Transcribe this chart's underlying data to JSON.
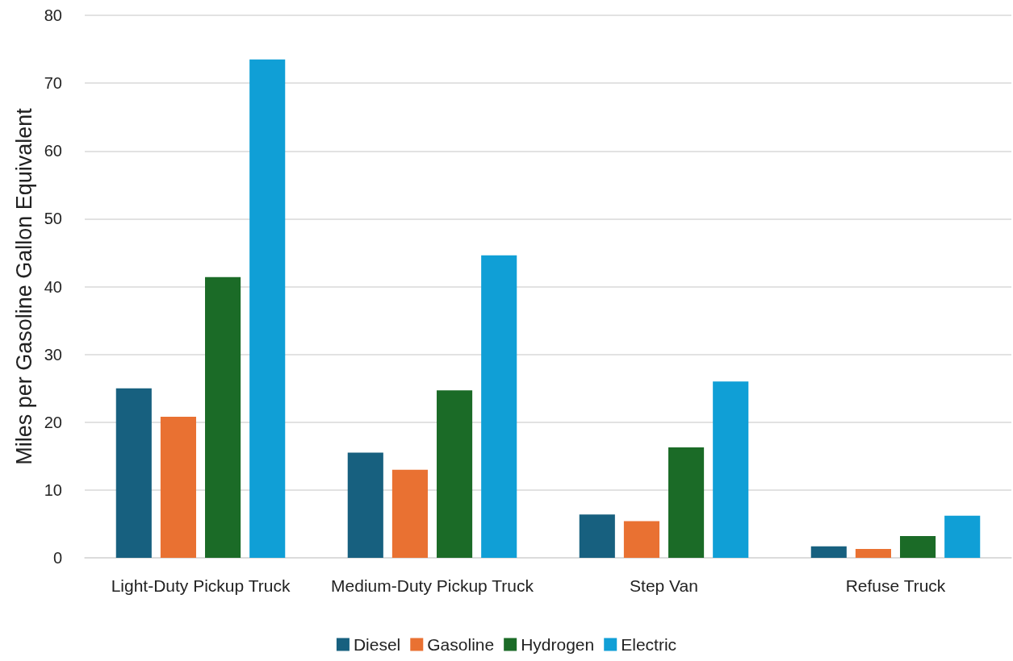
{
  "chart_data": {
    "type": "bar",
    "ylabel": "Miles per Gasoline Gallon Equivalent",
    "categories": [
      "Light-Duty Pickup Truck",
      "Medium-Duty Pickup Truck",
      "Step Van",
      "Refuse Truck"
    ],
    "series": [
      {
        "name": "Diesel",
        "color": "#17607f",
        "values": [
          25.0,
          15.5,
          6.4,
          1.7
        ]
      },
      {
        "name": "Gasoline",
        "color": "#e97132",
        "values": [
          20.8,
          13.0,
          5.4,
          1.3
        ]
      },
      {
        "name": "Hydrogen",
        "color": "#1b6b27",
        "values": [
          41.4,
          24.7,
          16.3,
          3.2
        ]
      },
      {
        "name": "Electric",
        "color": "#109fd6",
        "values": [
          73.5,
          44.6,
          26.0,
          6.2
        ]
      }
    ],
    "ylim": [
      0,
      80
    ],
    "yticks": [
      0,
      10,
      20,
      30,
      40,
      50,
      60,
      70,
      80
    ],
    "grid": "y",
    "legend": "bottom"
  }
}
